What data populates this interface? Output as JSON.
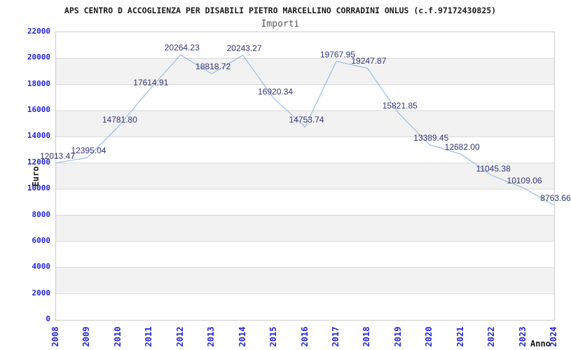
{
  "chart_data": {
    "type": "line",
    "title": "APS CENTRO D ACCOGLIENZA PER DISABILI PIETRO MARCELLINO CORRADINI ONLUS (c.f.97172430825)",
    "subtitle": "Importi",
    "xlabel": "Anno",
    "ylabel": "Euro",
    "x_ticks": [
      "2008",
      "2009",
      "2010",
      "2011",
      "2012",
      "2013",
      "2014",
      "2015",
      "2016",
      "2017",
      "2018",
      "2019",
      "2020",
      "2021",
      "2022",
      "2023",
      "2024"
    ],
    "values": [
      12013.47,
      12395.04,
      14781.8,
      17614.91,
      20264.23,
      18818.72,
      20243.27,
      16920.34,
      14753.74,
      19767.95,
      19247.87,
      15821.85,
      13389.45,
      12682.0,
      11045.38,
      10109.06,
      8763.66
    ],
    "point_labels": [
      "12013.47",
      "12395.04",
      "14781.80",
      "17614.91",
      "20264.23",
      "18818.72",
      "20243.27",
      "16920.34",
      "14753.74",
      "19767.95",
      "19247.87",
      "15821.85",
      "13389.45",
      "12682.00",
      "11045.38",
      "10109.06",
      "8763.66"
    ],
    "ylim": [
      0,
      22000
    ],
    "y_tick_step": 2000,
    "y_tick_labels": [
      "22000",
      "20000",
      "18000",
      "16000",
      "14000",
      "12000",
      "10000",
      "8000",
      "6000",
      "4000",
      "2000",
      "0"
    ],
    "grid": true,
    "legend": "none",
    "background_bands": "alternating-horizontal"
  },
  "colors": {
    "tick_label": "#2424dd",
    "point_label": "#333377",
    "line": "#98bee8",
    "band": "#f2f2f2",
    "grid": "#d8d8d8",
    "plot_border": "#cccccc",
    "title": "#1a1a1a",
    "subtitle": "#555555",
    "axis_title": "#1a1a1a",
    "background": "#ffffff"
  }
}
